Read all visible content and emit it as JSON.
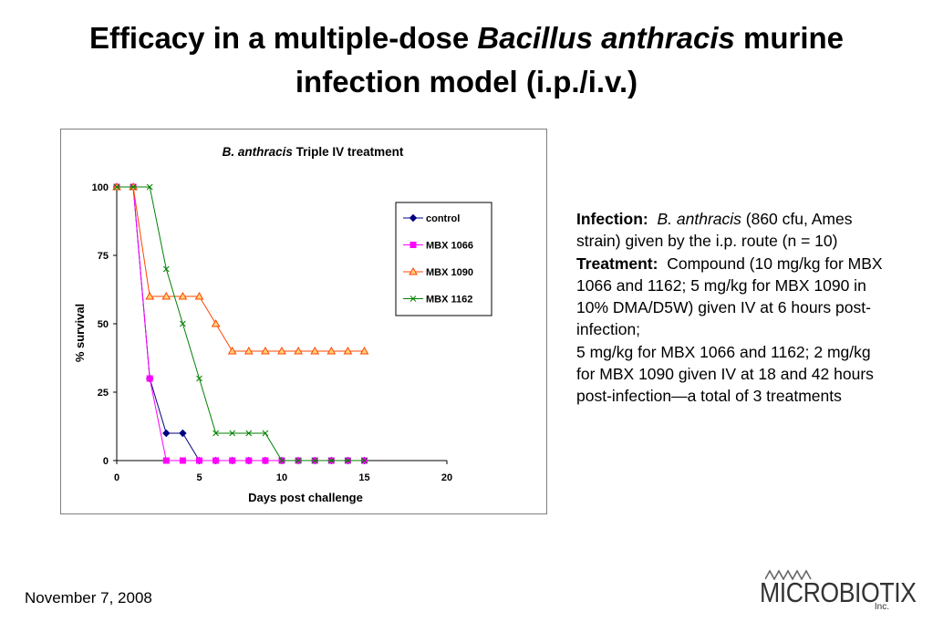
{
  "slide": {
    "title_part1": "Efficacy in a multiple-dose ",
    "title_italic": "Bacillus anthracis",
    "title_part2": " murine",
    "title_line2": "infection model (i.p./i.v.)",
    "date": "November 7, 2008",
    "logo_text": "MICROBIOTIX",
    "logo_inc": "Inc."
  },
  "description": {
    "infection_label": "Infection:",
    "infection_italic": "B. anthracis",
    "infection_text": " (860 cfu, Ames strain) given by the i.p. route (n = 10)",
    "treatment_label": "Treatment:",
    "treatment_text": "Compound (10 mg/kg for MBX 1066 and 1162; 5 mg/kg for MBX 1090 in 10% DMA/D5W) given IV at 6 hours post-infection;",
    "treatment_text2": "5 mg/kg for MBX 1066 and 1162; 2 mg/kg for MBX 1090 given IV at 18 and 42 hours post-infection—a total of 3 treatments"
  },
  "chart_data": {
    "type": "line",
    "title_italic": "B. anthracis",
    "title_rest": " Triple IV treatment",
    "xlabel": "Days post challenge",
    "ylabel": "% survival",
    "xlim": [
      0,
      20
    ],
    "ylim": [
      0,
      100
    ],
    "xticks": [
      0,
      5,
      10,
      15,
      20
    ],
    "yticks": [
      0,
      25,
      50,
      75,
      100
    ],
    "grid": false,
    "legend_position": "top-right",
    "series": [
      {
        "name": "control",
        "color": "#000080",
        "marker": "diamond",
        "x": [
          0,
          1,
          2,
          3,
          4,
          5,
          6,
          7,
          8,
          9,
          10,
          11,
          12,
          13,
          14,
          15
        ],
        "y": [
          100,
          100,
          30,
          10,
          10,
          0,
          0,
          0,
          0,
          0,
          0,
          0,
          0,
          0,
          0,
          0
        ]
      },
      {
        "name": "MBX 1066",
        "color": "#ff00ff",
        "marker": "square",
        "x": [
          0,
          1,
          2,
          3,
          4,
          5,
          6,
          7,
          8,
          9,
          10,
          11,
          12,
          13,
          14,
          15
        ],
        "y": [
          100,
          100,
          30,
          0,
          0,
          0,
          0,
          0,
          0,
          0,
          0,
          0,
          0,
          0,
          0,
          0
        ]
      },
      {
        "name": "MBX 1090",
        "color": "#ff4500",
        "marker": "triangle",
        "x": [
          0,
          1,
          2,
          3,
          4,
          5,
          6,
          7,
          8,
          9,
          10,
          11,
          12,
          13,
          14,
          15
        ],
        "y": [
          100,
          100,
          60,
          60,
          60,
          60,
          50,
          40,
          40,
          40,
          40,
          40,
          40,
          40,
          40,
          40
        ]
      },
      {
        "name": "MBX 1162",
        "color": "#008000",
        "marker": "x",
        "x": [
          0,
          1,
          2,
          3,
          4,
          5,
          6,
          7,
          8,
          9,
          10,
          11,
          12,
          13,
          14,
          15
        ],
        "y": [
          100,
          100,
          100,
          70,
          50,
          30,
          10,
          10,
          10,
          10,
          0,
          0,
          0,
          0,
          0,
          0
        ]
      }
    ]
  }
}
